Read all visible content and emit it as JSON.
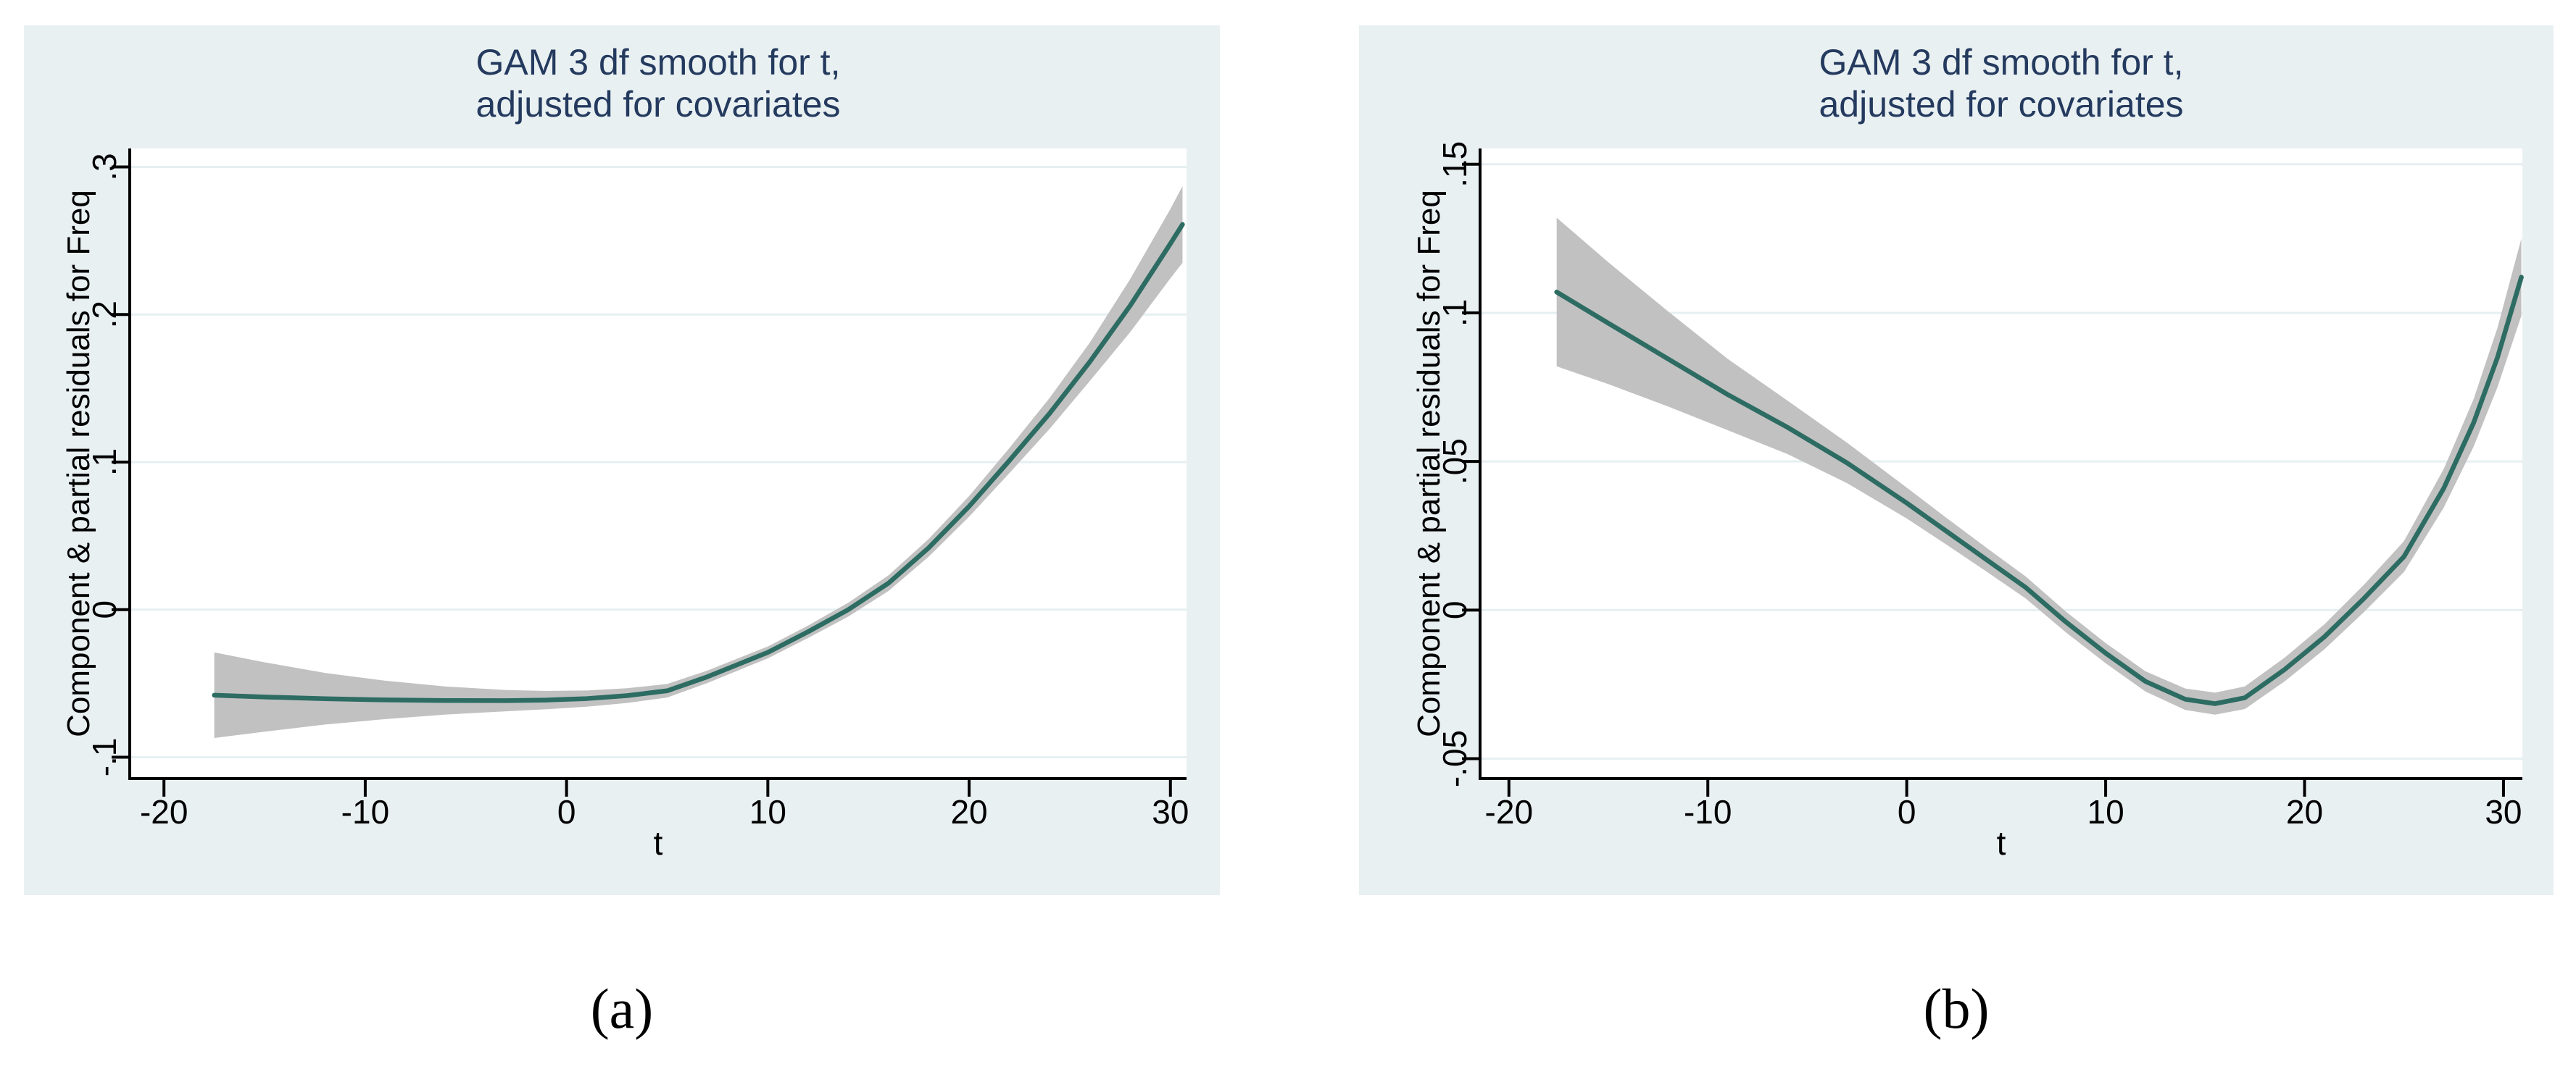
{
  "colors": {
    "page_background": "#ffffff",
    "panel_background": "#e9f0f2",
    "plot_background": "#ffffff",
    "grid_line": "#e6eff2",
    "axis_line": "#000000",
    "tick_label": "#000000",
    "title_text": "#243a5e",
    "fit_line": "#2d6c62",
    "ci_band": "#c1c1c1",
    "subfigure_label": "#000000"
  },
  "chart_data": [
    {
      "type": "line",
      "panel_label": "(a)",
      "title_line1": "GAM 3 df smooth for t,",
      "title_line2": "adjusted for covariates",
      "xlabel": "t",
      "ylabel": "Component & partial residuals for Freq",
      "legend": "none",
      "grid": true,
      "xlim": [
        -21.7,
        30.8
      ],
      "ylim": [
        -0.1145,
        0.3125
      ],
      "xticks": [
        -20,
        -10,
        0,
        10,
        20,
        30
      ],
      "xtick_labels": [
        "-20",
        "-10",
        "0",
        "10",
        "20",
        "30"
      ],
      "yticks": [
        -0.1,
        0,
        0.1,
        0.2,
        0.3
      ],
      "ytick_labels": [
        "-.1",
        "0",
        ".1",
        ".2",
        ".3"
      ],
      "x": [
        -17.5,
        -15,
        -12,
        -9,
        -6,
        -3,
        -1,
        1,
        3,
        5,
        7,
        10,
        12,
        14,
        16,
        18,
        20,
        22,
        24,
        26,
        28,
        30,
        30.6
      ],
      "fit": [
        -0.058,
        -0.0592,
        -0.0604,
        -0.0612,
        -0.0616,
        -0.0617,
        -0.0613,
        -0.0603,
        -0.0583,
        -0.055,
        -0.0455,
        -0.029,
        -0.015,
        0,
        0.018,
        0.042,
        0.07,
        0.101,
        0.133,
        0.168,
        0.206,
        0.248,
        0.261
      ],
      "ci_lo": [
        -0.087,
        -0.0827,
        -0.0779,
        -0.0742,
        -0.0711,
        -0.0689,
        -0.0675,
        -0.0658,
        -0.0633,
        -0.0596,
        -0.0497,
        -0.033,
        -0.0192,
        -0.0047,
        0.0127,
        0.036,
        0.063,
        0.0925,
        0.1225,
        0.155,
        0.188,
        0.2245,
        0.235
      ],
      "ci_hi": [
        -0.029,
        -0.0357,
        -0.0429,
        -0.0482,
        -0.0521,
        -0.0545,
        -0.0551,
        -0.0548,
        -0.0533,
        -0.0504,
        -0.0413,
        -0.025,
        -0.0108,
        0.0047,
        0.0233,
        0.048,
        0.077,
        0.1095,
        0.1435,
        0.181,
        0.224,
        0.2715,
        0.287
      ],
      "series": [
        {
          "name": "GAM 3 df smooth fit",
          "style": "solid-line"
        },
        {
          "name": "confidence band",
          "style": "shaded-band"
        }
      ]
    },
    {
      "type": "line",
      "panel_label": "(b)",
      "title_line1": "GAM 3 df smooth for t,",
      "title_line2": "adjusted for covariates",
      "xlabel": "t",
      "ylabel": "Component & partial residuals for Freq",
      "legend": "none",
      "grid": true,
      "xlim": [
        -21.45,
        30.95
      ],
      "ylim": [
        -0.0567,
        0.1553
      ],
      "xticks": [
        -20,
        -10,
        0,
        10,
        20,
        30
      ],
      "xtick_labels": [
        "-20",
        "-10",
        "0",
        "10",
        "20",
        "30"
      ],
      "yticks": [
        -0.05,
        0,
        0.05,
        0.1,
        0.15
      ],
      "ytick_labels": [
        "-.05",
        "0",
        ".05",
        ".1",
        ".15"
      ],
      "x": [
        -17.6,
        -15,
        -12,
        -9,
        -6,
        -3,
        0,
        2,
        4,
        6,
        8,
        10,
        12,
        14,
        15.5,
        17,
        19,
        21,
        23,
        25,
        27,
        28.5,
        29.7,
        30.9
      ],
      "fit": [
        0.107,
        0.0965,
        0.0845,
        0.0725,
        0.0615,
        0.0495,
        0.036,
        0.0265,
        0.017,
        0.0075,
        -0.004,
        -0.0145,
        -0.024,
        -0.03,
        -0.0315,
        -0.0295,
        -0.02,
        -0.009,
        0.004,
        0.018,
        0.041,
        0.063,
        0.085,
        0.112
      ],
      "ci_lo": [
        0.082,
        0.076,
        0.0685,
        0.0605,
        0.0525,
        0.0427,
        0.0308,
        0.022,
        0.013,
        0.0038,
        -0.0075,
        -0.0179,
        -0.0274,
        -0.0336,
        -0.0352,
        -0.0333,
        -0.024,
        -0.0132,
        -0.0006,
        0.0128,
        0.0345,
        0.055,
        0.075,
        0.099
      ],
      "ci_hi": [
        0.132,
        0.117,
        0.1005,
        0.0845,
        0.0705,
        0.0563,
        0.0412,
        0.031,
        0.021,
        0.0112,
        -0.0005,
        -0.0111,
        -0.0206,
        -0.0264,
        -0.0278,
        -0.0257,
        -0.016,
        -0.0048,
        0.0086,
        0.0232,
        0.0475,
        0.071,
        0.095,
        0.125
      ],
      "series": [
        {
          "name": "GAM 3 df smooth fit",
          "style": "solid-line"
        },
        {
          "name": "confidence band",
          "style": "shaded-band"
        }
      ]
    }
  ]
}
